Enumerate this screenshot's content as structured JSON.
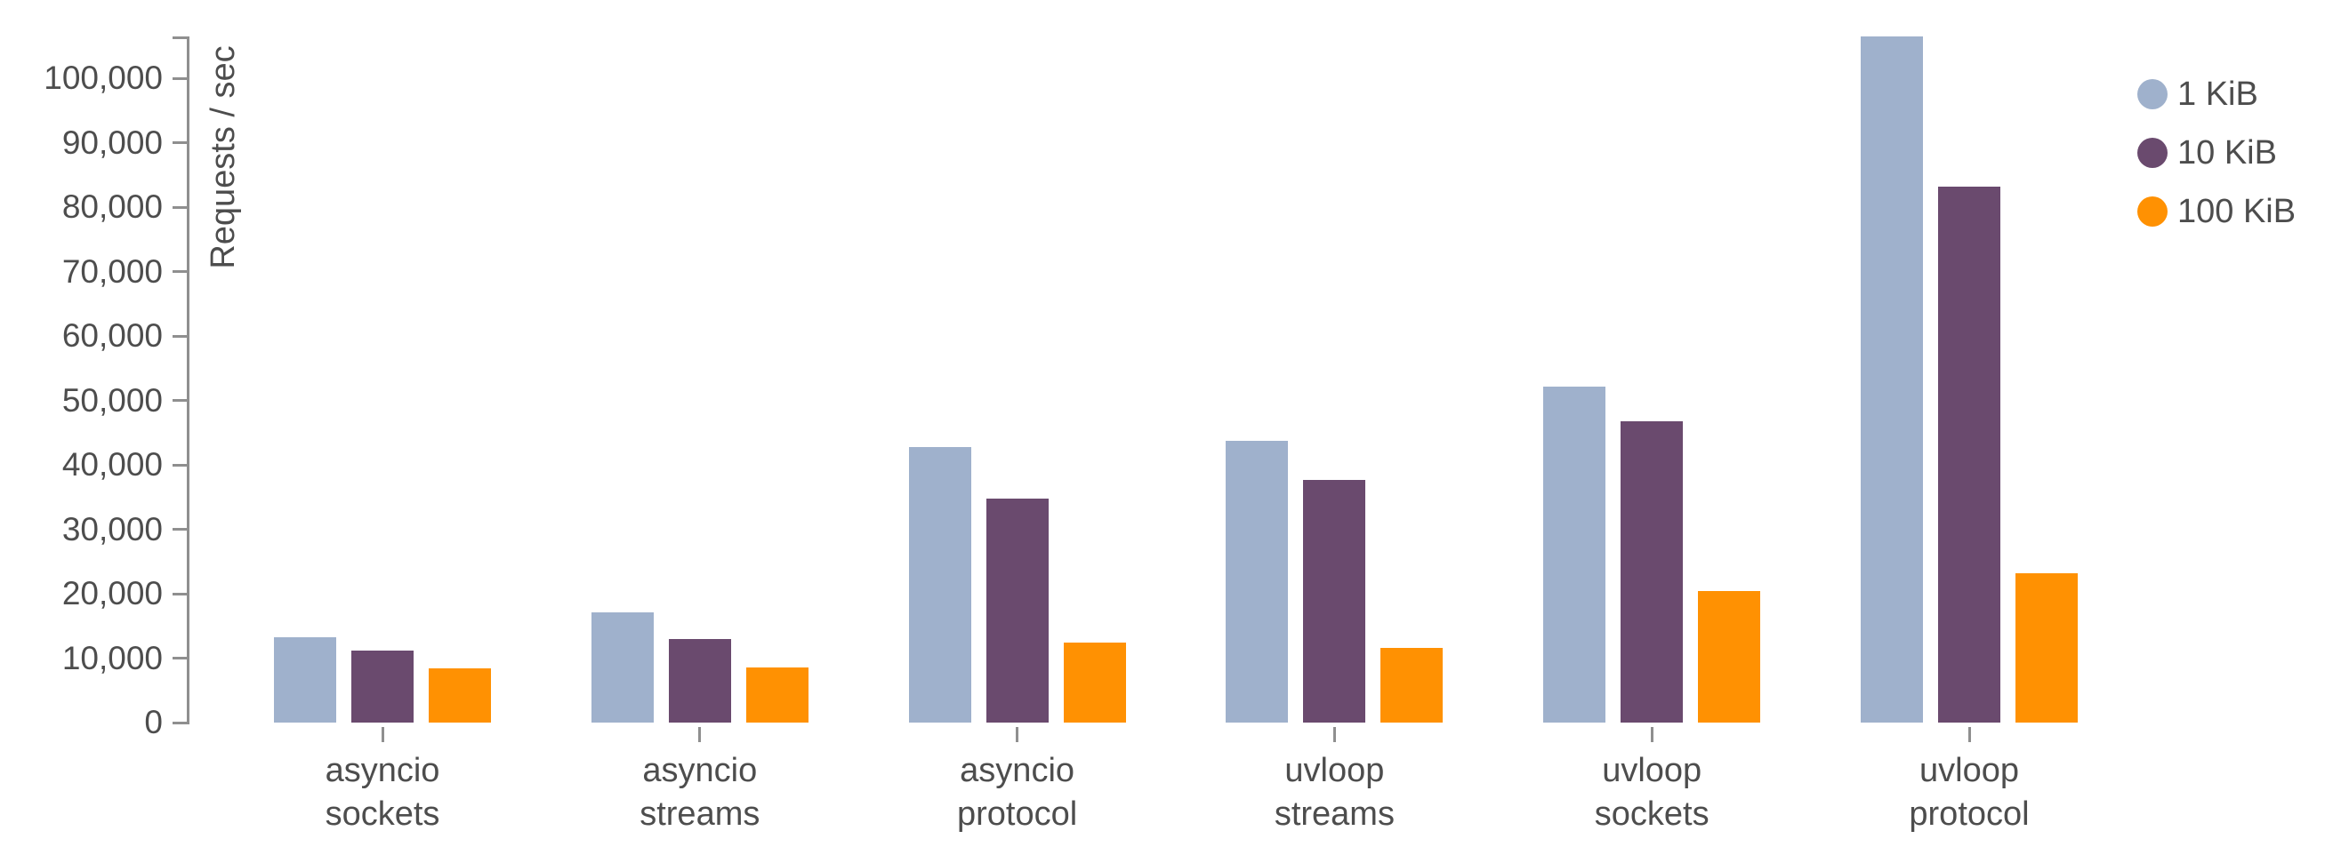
{
  "chart_data": {
    "type": "bar",
    "title": "",
    "ylabel": "Requests / sec",
    "xlabel": "",
    "grid": false,
    "legend_position": "top-right",
    "categories": [
      "asyncio sockets",
      "asyncio streams",
      "asyncio protocol",
      "uvloop streams",
      "uvloop sockets",
      "uvloop protocol"
    ],
    "series": [
      {
        "name": "1 KiB",
        "color": "#9fb1cc",
        "values": [
          13300,
          17100,
          42700,
          43700,
          52200,
          106500
        ]
      },
      {
        "name": "10 KiB",
        "color": "#6a4a6e",
        "values": [
          11200,
          13000,
          34800,
          37600,
          46800,
          83200
        ]
      },
      {
        "name": "100 KiB",
        "color": "#ff9102",
        "values": [
          8400,
          8600,
          12400,
          11600,
          20400,
          23200
        ]
      }
    ],
    "y_axis": {
      "min": 0,
      "max": 100000,
      "tick_step": 10000,
      "tick_labels": [
        "0",
        "10,000",
        "20,000",
        "30,000",
        "40,000",
        "50,000",
        "60,000",
        "70,000",
        "80,000",
        "90,000",
        "100,000"
      ]
    },
    "ylim": [
      0,
      100000
    ]
  }
}
